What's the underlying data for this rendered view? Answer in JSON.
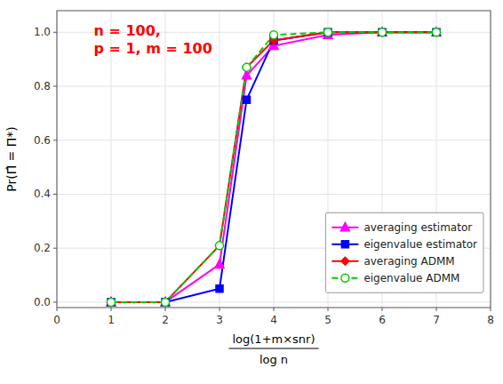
{
  "chart_data": {
    "type": "line",
    "y_label": "Pr(Π̂ = Π*)",
    "x_label": [
      "log(1+m×snr)",
      "log n"
    ],
    "x": [
      1,
      2,
      3,
      3.5,
      4,
      5,
      6,
      7
    ],
    "series": [
      {
        "name": "averaging estimator",
        "color": "#FF00FF",
        "marker": "triangle",
        "line_style": "solid",
        "values": [
          0.0,
          0.0,
          0.14,
          0.84,
          0.95,
          0.99,
          1.0,
          1.0
        ]
      },
      {
        "name": "eigenvalue estimator",
        "color": "#0000FF",
        "marker": "square",
        "line_style": "solid",
        "values": [
          0.0,
          0.0,
          0.05,
          0.75,
          0.97,
          1.0,
          1.0,
          1.0
        ]
      },
      {
        "name": "averaging ADMM",
        "color": "#FF0000",
        "marker": "diamond",
        "line_style": "solid",
        "values": [
          0.0,
          0.0,
          0.21,
          0.87,
          0.97,
          1.0,
          1.0,
          1.0
        ]
      },
      {
        "name": "eigenvalue ADMM",
        "color": "#00CC00",
        "marker": "open-circle",
        "line_style": "dashed",
        "values": [
          0.0,
          0.0,
          0.21,
          0.87,
          0.99,
          1.0,
          1.0,
          1.0
        ]
      }
    ],
    "annotations": [
      {
        "text": "n = 100,\np = 1, m = 100",
        "color": "#FF0000"
      }
    ],
    "xlim": [
      0,
      8
    ],
    "ylim": [
      -0.02,
      1.08
    ],
    "xticks": [
      0,
      1,
      2,
      3,
      4,
      5,
      6,
      7,
      8
    ],
    "yticks": [
      {
        "value": 0.0,
        "label": "0.0"
      },
      0.2,
      0.4,
      0.6,
      0.8,
      {
        "value": 1.0,
        "label": "1.0"
      }
    ],
    "grid": true,
    "legend": "lower right"
  }
}
